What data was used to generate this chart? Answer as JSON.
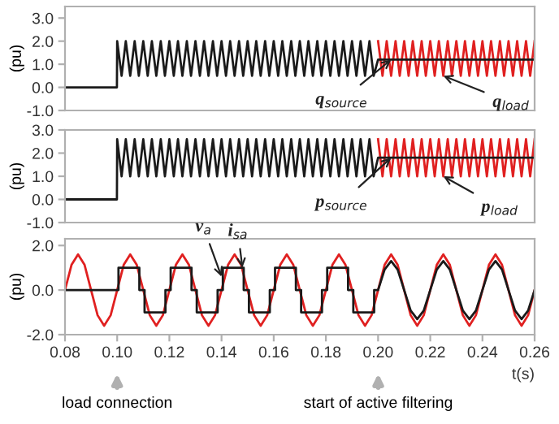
{
  "chart_data": [
    {
      "type": "line",
      "ylabel": "(pu)",
      "xlim": [
        0.08,
        0.26
      ],
      "ylim": [
        -1.0,
        3.5
      ],
      "yticks": [
        {
          "value": -1,
          "label": "-1.0"
        },
        {
          "value": 0,
          "label": "0.0"
        },
        {
          "value": 1,
          "label": "1.0"
        },
        {
          "value": 2,
          "label": "2.0"
        },
        {
          "value": 3,
          "label": "3.0"
        }
      ],
      "tick_labels": "y",
      "x": [
        0.08,
        0.0999,
        0.1,
        0.1017,
        0.1033,
        0.105,
        0.1067,
        0.1083,
        0.11,
        0.1117,
        0.1133,
        0.115,
        0.1167,
        0.1183,
        0.12,
        0.1217,
        0.1233,
        0.125,
        0.1267,
        0.1283,
        0.13,
        0.1317,
        0.1333,
        0.135,
        0.1367,
        0.1383,
        0.14,
        0.1417,
        0.1433,
        0.145,
        0.1467,
        0.1483,
        0.15,
        0.1517,
        0.1533,
        0.155,
        0.1567,
        0.1583,
        0.16,
        0.1617,
        0.1633,
        0.165,
        0.1667,
        0.1683,
        0.17,
        0.1717,
        0.1733,
        0.175,
        0.1767,
        0.1783,
        0.18,
        0.1817,
        0.1833,
        0.185,
        0.1867,
        0.1883,
        0.19,
        0.1917,
        0.1933,
        0.195,
        0.1967,
        0.1983,
        0.2,
        0.2017,
        0.2033,
        0.205,
        0.2067,
        0.2083,
        0.21,
        0.2117,
        0.2133,
        0.215,
        0.2167,
        0.2183,
        0.22,
        0.2217,
        0.2233,
        0.225,
        0.2267,
        0.2283,
        0.23,
        0.2317,
        0.2333,
        0.235,
        0.2367,
        0.2383,
        0.24,
        0.2417,
        0.2433,
        0.245,
        0.2467,
        0.2483,
        0.25,
        0.2517,
        0.2533,
        0.255,
        0.2567,
        0.2583,
        0.26
      ],
      "series": [
        {
          "color": "#e02020",
          "values": [
            null,
            null,
            null,
            null,
            null,
            null,
            null,
            null,
            null,
            null,
            null,
            null,
            null,
            null,
            null,
            null,
            null,
            null,
            null,
            null,
            null,
            null,
            null,
            null,
            null,
            null,
            null,
            null,
            null,
            null,
            null,
            null,
            null,
            null,
            null,
            null,
            null,
            null,
            null,
            null,
            null,
            null,
            null,
            null,
            null,
            null,
            null,
            null,
            null,
            null,
            null,
            null,
            null,
            null,
            null,
            null,
            null,
            null,
            null,
            null,
            null,
            null,
            2,
            0.5,
            2,
            0.5,
            2,
            0.5,
            2,
            0.5,
            2,
            0.5,
            2,
            0.5,
            2,
            0.5,
            2,
            0.5,
            2,
            0.5,
            2,
            0.5,
            2,
            0.5,
            2,
            0.5,
            2,
            0.5,
            2,
            0.5,
            2,
            0.5,
            2,
            0.5,
            2,
            0.5,
            2,
            0.5,
            2
          ]
        },
        {
          "color": "#1a1a1a",
          "values": [
            0,
            0,
            2,
            0.5,
            2,
            0.5,
            2,
            0.5,
            2,
            0.5,
            2,
            0.5,
            2,
            0.5,
            2,
            0.5,
            2,
            0.5,
            2,
            0.5,
            2,
            0.5,
            2,
            0.5,
            2,
            0.5,
            2,
            0.5,
            2,
            0.5,
            2,
            0.5,
            2,
            0.5,
            2,
            0.5,
            2,
            0.5,
            2,
            0.5,
            2,
            0.5,
            2,
            0.5,
            2,
            0.5,
            2,
            0.5,
            2,
            0.5,
            2,
            0.5,
            2,
            0.5,
            2,
            0.5,
            2,
            0.5,
            2,
            0.5,
            2,
            0.5,
            1.2,
            1.2,
            1.2,
            1.2,
            1.2,
            1.2,
            1.2,
            1.2,
            1.2,
            1.2,
            1.2,
            1.2,
            1.2,
            1.2,
            1.2,
            1.2,
            1.2,
            1.2,
            1.2,
            1.2,
            1.2,
            1.2,
            1.2,
            1.2,
            1.2,
            1.2,
            1.2,
            1.2,
            1.2,
            1.2,
            1.2,
            1.2,
            1.2,
            1.2,
            1.2,
            1.2,
            1.2
          ]
        }
      ],
      "annotations": [
        {
          "text": "q$_{source}$",
          "x": 0.205,
          "y": 1.2
        },
        {
          "text": "q$_{load}$",
          "x": 0.225,
          "y": 0.5
        }
      ]
    },
    {
      "type": "line",
      "ylabel": "(pu)",
      "xlim": [
        0.08,
        0.26
      ],
      "ylim": [
        -1.0,
        3.0
      ],
      "yticks": [
        {
          "value": -1,
          "label": "-1.0"
        },
        {
          "value": 0,
          "label": "0.0"
        },
        {
          "value": 1,
          "label": "1.0"
        },
        {
          "value": 2,
          "label": "2.0"
        },
        {
          "value": 3,
          "label": "3.0"
        }
      ],
      "tick_labels": "y",
      "x": [
        0.08,
        0.0999,
        0.1,
        0.1017,
        0.1033,
        0.105,
        0.1067,
        0.1083,
        0.11,
        0.1117,
        0.1133,
        0.115,
        0.1167,
        0.1183,
        0.12,
        0.1217,
        0.1233,
        0.125,
        0.1267,
        0.1283,
        0.13,
        0.1317,
        0.1333,
        0.135,
        0.1367,
        0.1383,
        0.14,
        0.1417,
        0.1433,
        0.145,
        0.1467,
        0.1483,
        0.15,
        0.1517,
        0.1533,
        0.155,
        0.1567,
        0.1583,
        0.16,
        0.1617,
        0.1633,
        0.165,
        0.1667,
        0.1683,
        0.17,
        0.1717,
        0.1733,
        0.175,
        0.1767,
        0.1783,
        0.18,
        0.1817,
        0.1833,
        0.185,
        0.1867,
        0.1883,
        0.19,
        0.1917,
        0.1933,
        0.195,
        0.1967,
        0.1983,
        0.2,
        0.2017,
        0.2033,
        0.205,
        0.2067,
        0.2083,
        0.21,
        0.2117,
        0.2133,
        0.215,
        0.2167,
        0.2183,
        0.22,
        0.2217,
        0.2233,
        0.225,
        0.2267,
        0.2283,
        0.23,
        0.2317,
        0.2333,
        0.235,
        0.2367,
        0.2383,
        0.24,
        0.2417,
        0.2433,
        0.245,
        0.2467,
        0.2483,
        0.25,
        0.2517,
        0.2533,
        0.255,
        0.2567,
        0.2583,
        0.26
      ],
      "series": [
        {
          "color": "#e02020",
          "values": [
            null,
            null,
            null,
            null,
            null,
            null,
            null,
            null,
            null,
            null,
            null,
            null,
            null,
            null,
            null,
            null,
            null,
            null,
            null,
            null,
            null,
            null,
            null,
            null,
            null,
            null,
            null,
            null,
            null,
            null,
            null,
            null,
            null,
            null,
            null,
            null,
            null,
            null,
            null,
            null,
            null,
            null,
            null,
            null,
            null,
            null,
            null,
            null,
            null,
            null,
            null,
            null,
            null,
            null,
            null,
            null,
            null,
            null,
            null,
            null,
            null,
            null,
            2.6,
            1,
            2.6,
            1,
            2.6,
            1,
            2.6,
            1,
            2.6,
            1,
            2.6,
            1,
            2.6,
            1,
            2.6,
            1,
            2.6,
            1,
            2.6,
            1,
            2.6,
            1,
            2.6,
            1,
            2.6,
            1,
            2.6,
            1,
            2.6,
            1,
            2.6,
            1,
            2.6,
            1,
            2.6,
            1,
            2.6
          ]
        },
        {
          "color": "#1a1a1a",
          "values": [
            0,
            0,
            2.6,
            1,
            2.6,
            1,
            2.6,
            1,
            2.6,
            1,
            2.6,
            1,
            2.6,
            1,
            2.6,
            1,
            2.6,
            1,
            2.6,
            1,
            2.6,
            1,
            2.6,
            1,
            2.6,
            1,
            2.6,
            1,
            2.6,
            1,
            2.6,
            1,
            2.6,
            1,
            2.6,
            1,
            2.6,
            1,
            2.6,
            1,
            2.6,
            1,
            2.6,
            1,
            2.6,
            1,
            2.6,
            1,
            2.6,
            1,
            2.6,
            1,
            2.6,
            1,
            2.6,
            1,
            2.6,
            1,
            2.6,
            1,
            2.6,
            1,
            1.8,
            1.8,
            1.8,
            1.8,
            1.8,
            1.8,
            1.8,
            1.8,
            1.8,
            1.8,
            1.8,
            1.8,
            1.8,
            1.8,
            1.8,
            1.8,
            1.8,
            1.8,
            1.8,
            1.8,
            1.8,
            1.8,
            1.8,
            1.8,
            1.8,
            1.8,
            1.8,
            1.8,
            1.8,
            1.8,
            1.8,
            1.8,
            1.8,
            1.8,
            1.8,
            1.8,
            1.8
          ]
        }
      ],
      "annotations": [
        {
          "text": "p$_{source}$",
          "x": 0.205,
          "y": 1.8
        },
        {
          "text": "p$_{load}$",
          "x": 0.225,
          "y": 1.0
        }
      ]
    },
    {
      "type": "line",
      "ylabel": "(pu)",
      "xlabel": "t(s)",
      "xlim": [
        0.08,
        0.26
      ],
      "ylim": [
        -2.0,
        2.3
      ],
      "yticks": [
        {
          "value": -2,
          "label": "-2.0"
        },
        {
          "value": 0,
          "label": "0.0"
        },
        {
          "value": 2,
          "label": "2.0"
        }
      ],
      "xticks": [
        {
          "value": 0.08,
          "label": "0.08"
        },
        {
          "value": 0.1,
          "label": "0.10"
        },
        {
          "value": 0.12,
          "label": "0.12"
        },
        {
          "value": 0.14,
          "label": "0.14"
        },
        {
          "value": 0.16,
          "label": "0.16"
        },
        {
          "value": 0.18,
          "label": "0.18"
        },
        {
          "value": 0.2,
          "label": "0.20"
        },
        {
          "value": 0.22,
          "label": "0.22"
        },
        {
          "value": 0.24,
          "label": "0.24"
        },
        {
          "value": 0.26,
          "label": "0.26"
        }
      ],
      "series": [
        {
          "color": "#e02020",
          "x": [
            0.08,
            0.0825,
            0.085,
            0.0875,
            0.09,
            0.0925,
            0.095,
            0.0975,
            0.1,
            0.1025,
            0.105,
            0.1075,
            0.11,
            0.1125,
            0.115,
            0.1175,
            0.12,
            0.1225,
            0.125,
            0.1275,
            0.13,
            0.1325,
            0.135,
            0.1375,
            0.14,
            0.1425,
            0.145,
            0.1475,
            0.15,
            0.1525,
            0.155,
            0.1575,
            0.16,
            0.1625,
            0.165,
            0.1675,
            0.17,
            0.1725,
            0.175,
            0.1775,
            0.18,
            0.1825,
            0.185,
            0.1875,
            0.19,
            0.1925,
            0.195,
            0.1975,
            0.2,
            0.2025,
            0.205,
            0.2075,
            0.21,
            0.2125,
            0.215,
            0.2175,
            0.22,
            0.2225,
            0.225,
            0.2275,
            0.23,
            0.2325,
            0.235,
            0.2375,
            0.24,
            0.2425,
            0.245,
            0.2475,
            0.25,
            0.2525,
            0.255,
            0.2575,
            0.26
          ],
          "values": [
            0,
            1.13,
            1.6,
            1.13,
            0,
            -1.13,
            -1.6,
            -1.13,
            0,
            1.13,
            1.6,
            1.13,
            0,
            -1.13,
            -1.6,
            -1.13,
            0,
            1.13,
            1.6,
            1.13,
            0,
            -1.13,
            -1.6,
            -1.13,
            0,
            1.13,
            1.6,
            1.13,
            0,
            -1.13,
            -1.6,
            -1.13,
            0,
            1.13,
            1.6,
            1.13,
            0,
            -1.13,
            -1.6,
            -1.13,
            0,
            1.13,
            1.6,
            1.13,
            0,
            -1.13,
            -1.6,
            -1.13,
            0,
            1.13,
            1.6,
            1.13,
            0,
            -1.13,
            -1.6,
            -1.13,
            0,
            1.13,
            1.6,
            1.13,
            0,
            -1.13,
            -1.6,
            -1.13,
            0,
            1.13,
            1.6,
            1.13,
            0,
            -1.13,
            -1.6,
            -1.13,
            0
          ]
        },
        {
          "color": "#1a1a1a",
          "x": [
            0.08,
            0.1005,
            0.1005,
            0.1085,
            0.1085,
            0.1105,
            0.1105,
            0.1185,
            0.1185,
            0.1205,
            0.1205,
            0.1285,
            0.1285,
            0.1305,
            0.1305,
            0.1385,
            0.1385,
            0.1405,
            0.1405,
            0.1485,
            0.1485,
            0.1505,
            0.1505,
            0.1585,
            0.1585,
            0.1605,
            0.1605,
            0.1685,
            0.1685,
            0.1705,
            0.1705,
            0.1785,
            0.1785,
            0.1805,
            0.1805,
            0.1885,
            0.1885,
            0.1905,
            0.1905,
            0.1985,
            0.1985,
            0.2,
            0.2025,
            0.205,
            0.2075,
            0.21,
            0.2125,
            0.215,
            0.2175,
            0.22,
            0.2225,
            0.225,
            0.2275,
            0.23,
            0.2325,
            0.235,
            0.2375,
            0.24,
            0.2425,
            0.245,
            0.2475,
            0.25,
            0.2525,
            0.255,
            0.2575,
            0.26
          ],
          "values": [
            0,
            0,
            1,
            1,
            0,
            0,
            -1,
            -1,
            0,
            0,
            1,
            1,
            0,
            0,
            -1,
            -1,
            0,
            0,
            1,
            1,
            0,
            0,
            -1,
            -1,
            0,
            0,
            1,
            1,
            0,
            0,
            -1,
            -1,
            0,
            0,
            1,
            1,
            0,
            0,
            -1,
            -1,
            0,
            0,
            0.92,
            1.3,
            0.92,
            0,
            -0.92,
            -1.3,
            -0.92,
            0,
            0.92,
            1.3,
            0.92,
            0,
            -0.92,
            -1.3,
            -0.92,
            0,
            0.92,
            1.3,
            0.92,
            0,
            -0.92,
            -1.3,
            -0.92,
            0
          ]
        }
      ],
      "annotations": [
        {
          "text": "v$_{a}$",
          "x": 0.14,
          "y": 0.6
        },
        {
          "text": "i$_{sa}$",
          "x": 0.148,
          "y": 1.0
        },
        "load connection",
        "start of active filtering"
      ]
    }
  ]
}
